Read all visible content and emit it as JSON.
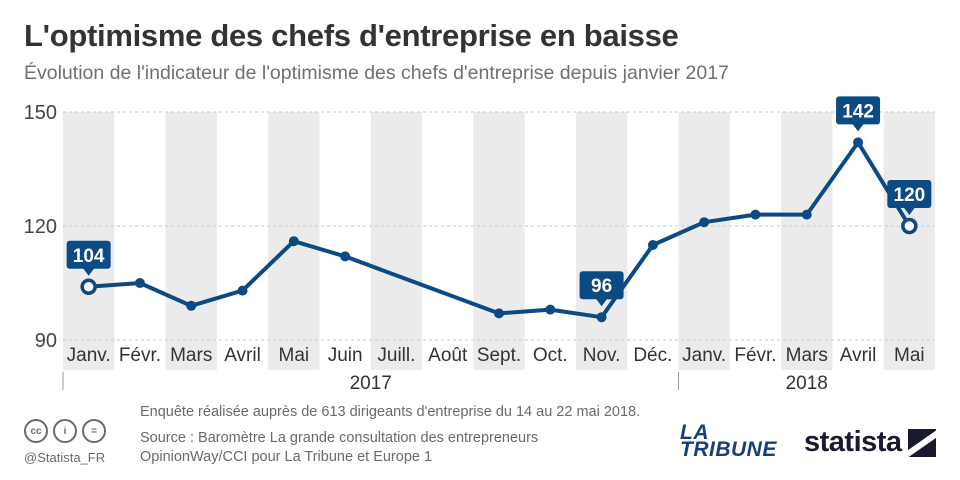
{
  "header": {
    "title": "L'optimisme des chefs d'entreprise en baisse",
    "subtitle": "Évolution de l'indicateur de l'optimisme des chefs d'entreprise depuis janvier 2017"
  },
  "chart_data": {
    "type": "line",
    "title": "L'optimisme des chefs d'entreprise en baisse",
    "subtitle": "Évolution de l'indicateur de l'optimisme des chefs d'entreprise depuis janvier 2017",
    "categories": [
      "Janv.",
      "Févr.",
      "Mars",
      "Avril",
      "Mai",
      "Juin",
      "Juill.",
      "Août",
      "Sept.",
      "Oct.",
      "Nov.",
      "Déc.",
      "Janv.",
      "Févr.",
      "Mars",
      "Avril",
      "Mai"
    ],
    "years": [
      {
        "label": "2017",
        "start": 0,
        "end": 11
      },
      {
        "label": "2018",
        "start": 12,
        "end": 16
      }
    ],
    "series": [
      {
        "values": [
          104,
          105,
          99,
          103,
          116,
          112,
          null,
          null,
          97,
          98,
          96,
          115,
          121,
          123,
          123,
          142,
          120
        ]
      }
    ],
    "labeled_points": [
      {
        "index": 0,
        "label": "104"
      },
      {
        "index": 10,
        "label": "96"
      },
      {
        "index": 15,
        "label": "142"
      },
      {
        "index": 16,
        "label": "120"
      }
    ],
    "highlighted_points": [
      0,
      16
    ],
    "ylim": [
      90,
      150
    ],
    "yticks": [
      90,
      120,
      150
    ],
    "xlabel": "",
    "ylabel": "",
    "grid": true,
    "line_color": "#0b4a82",
    "band_color": "#ebebeb"
  },
  "footer": {
    "survey_note": "Enquête réalisée auprès de 613 dirigeants d'entreprise du 14 au 22 mai 2018.",
    "source_line1": "Source : Baromètre La grande consultation des entrepreneurs",
    "source_line2": "OpinionWay/CCI pour La Tribune et Europe 1",
    "handle": "@Statista_FR",
    "cc_icons": [
      "cc-icon",
      "by-icon",
      "equal-icon"
    ],
    "cc_glyphs": [
      "cc",
      "i",
      "="
    ]
  },
  "brand": {
    "tribune_line1": "LA",
    "tribune_line2": "TRIBUNE",
    "statista": "statista"
  }
}
